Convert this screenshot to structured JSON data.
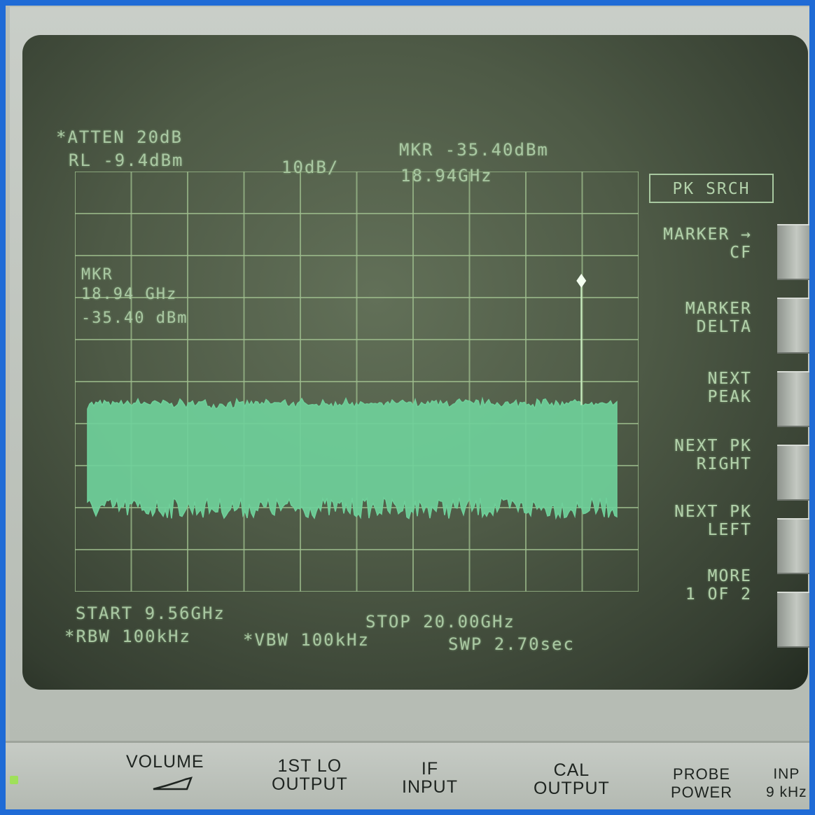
{
  "screen": {
    "atten": "*ATTEN 20dB",
    "ref_level": "RL -9.4dBm",
    "scale": "10dB/",
    "marker_amp": "MKR -35.40dBm",
    "marker_freq": "18.94GHz",
    "mkr_label": "MKR",
    "mkr_freq_readout": "18.94 GHz",
    "mkr_amp_readout": "-35.40 dBm",
    "start": "START 9.56GHz",
    "stop": "STOP 20.00GHz",
    "rbw": "*RBW 100kHz",
    "vbw": "*VBW 100kHz",
    "sweep": "SWP 2.70sec"
  },
  "softkeys": {
    "title": "PK SRCH",
    "items": [
      {
        "label": "MARKER →\nCF"
      },
      {
        "label": "MARKER\nDELTA"
      },
      {
        "label": "NEXT\nPEAK"
      },
      {
        "label": "NEXT PK\nRIGHT"
      },
      {
        "label": "NEXT PK\nLEFT"
      },
      {
        "label": "MORE\n1 OF 2"
      }
    ]
  },
  "front_panel": {
    "volume": "VOLUME",
    "first_lo": "1ST LO\nOUTPUT",
    "if_input": "IF\nINPUT",
    "cal_output": "CAL\nOUTPUT",
    "probe_power": "PROBE\nPOWER",
    "input": "INP\n9 kHz"
  },
  "colors": {
    "trace": "#6fd09a",
    "graticule": "#9fbf8e",
    "screen_text": "#a9c8a2"
  },
  "chart_data": {
    "type": "line",
    "x_range": [
      9.56,
      20.0
    ],
    "y_range": [
      -109.4,
      -9.4
    ],
    "divisions_x": 10,
    "divisions_y": 10,
    "noise_floor_top": -65,
    "noise_floor_bottom": -88,
    "marker": {
      "x": 18.94,
      "y": -35.4
    }
  }
}
